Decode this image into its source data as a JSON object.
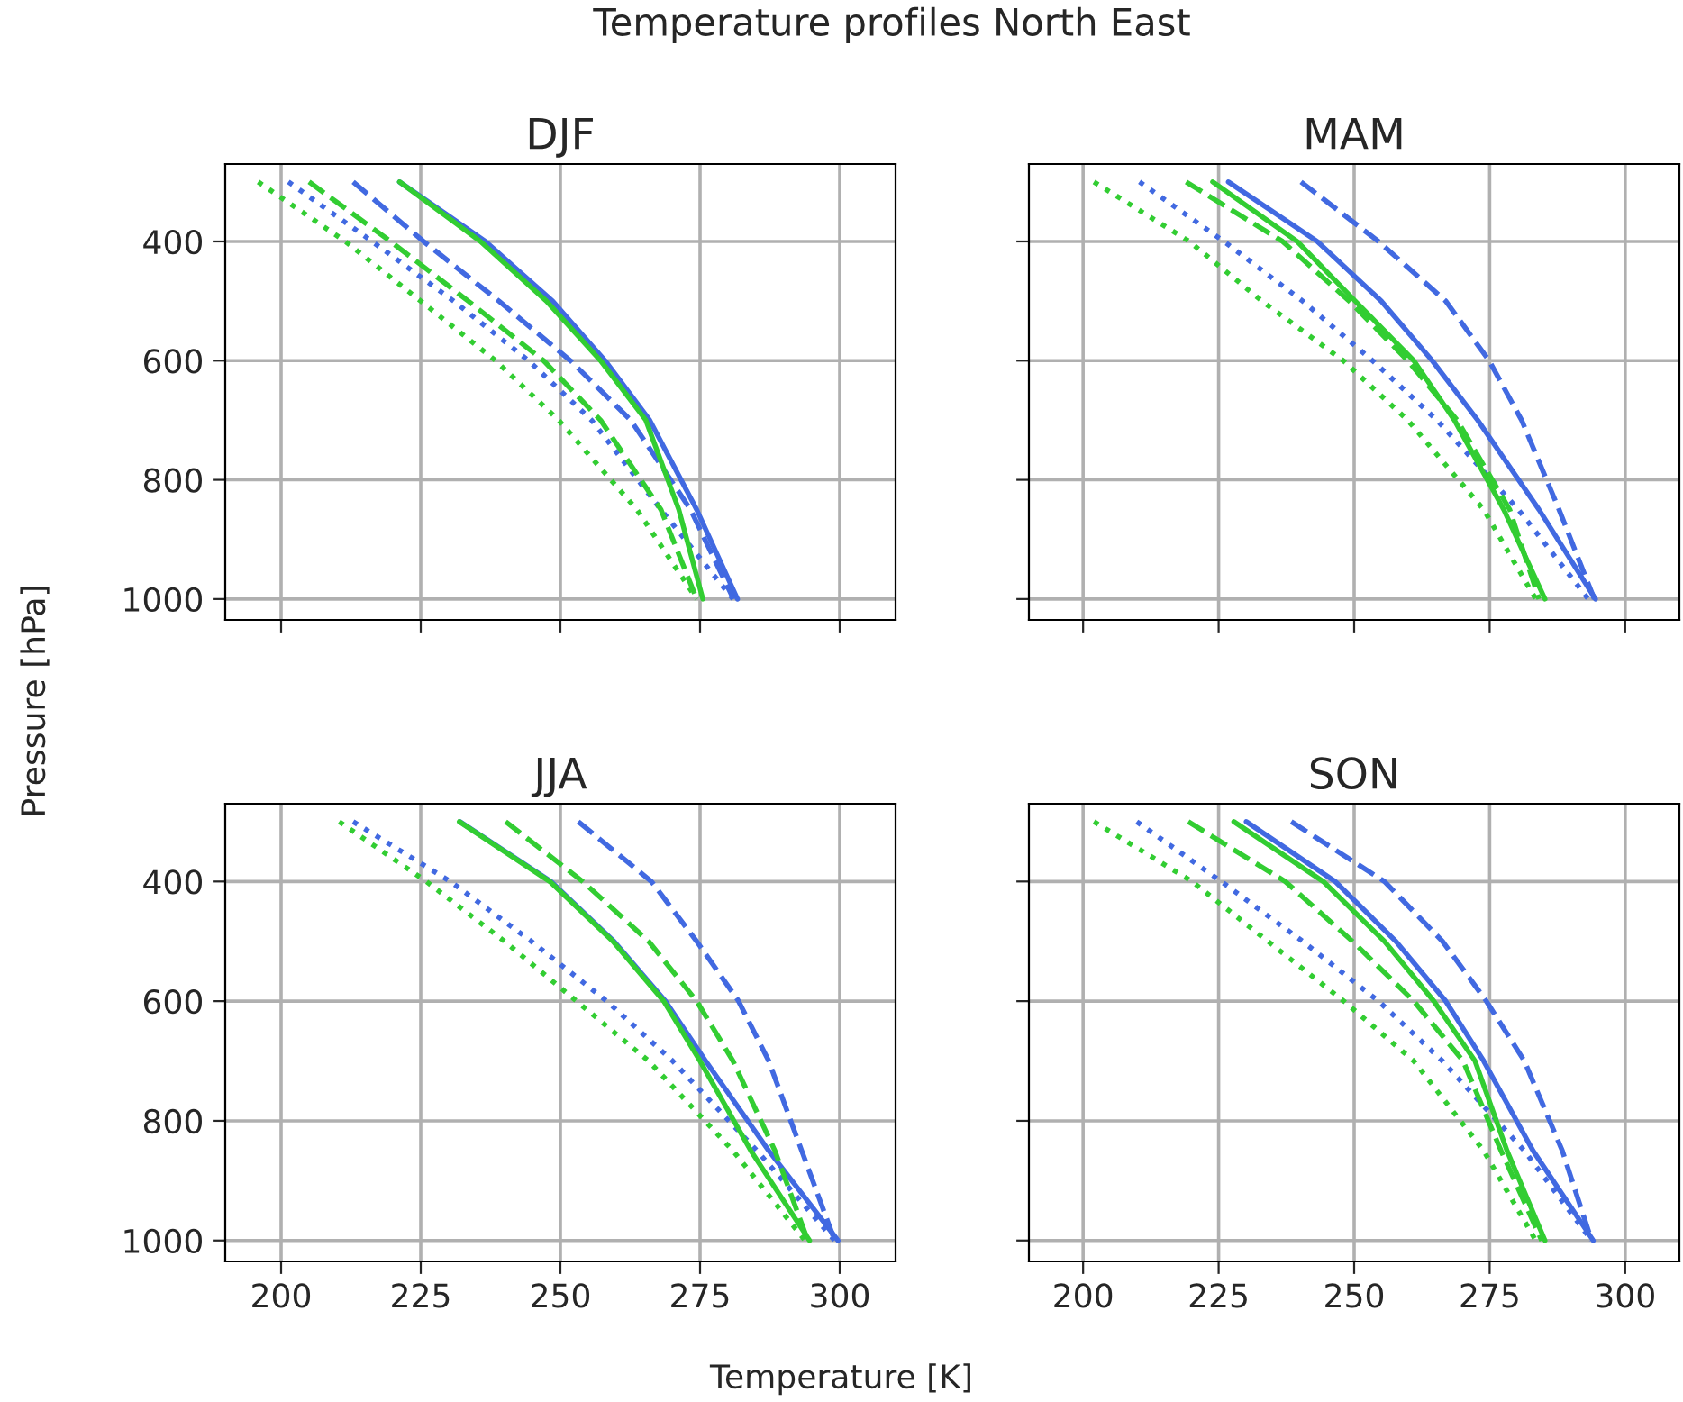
{
  "chart_data": [
    {
      "type": "line",
      "title": "DJF",
      "annotations": [
        "Temperature profiles North East"
      ],
      "ylabel": "Pressure [hPa]",
      "xlim": [
        190,
        310
      ],
      "xticks": [
        200,
        225,
        250,
        275,
        300
      ],
      "ylim": [
        1035,
        270
      ],
      "yticks": [
        400,
        600,
        800,
        1000
      ],
      "grid": true,
      "tick_labels": "y",
      "series": [
        {
          "color": "#4169e1",
          "line_style": "solid",
          "x": [
            221.2,
            236.6,
            248.6,
            258,
            266,
            274.4,
            281.7
          ],
          "values": [
            300,
            400,
            500,
            600,
            700,
            850,
            1000
          ]
        },
        {
          "color": "#4169e1",
          "line_style": "dashed",
          "x": [
            212.9,
            225.5,
            239,
            251.8,
            262.6,
            273.3,
            281
          ],
          "values": [
            300,
            400,
            500,
            600,
            700,
            850,
            1000
          ]
        },
        {
          "color": "#4169e1",
          "line_style": "dotted",
          "x": [
            201.3,
            216.3,
            230.9,
            244.3,
            255.6,
            268,
            280.9
          ],
          "values": [
            300,
            400,
            500,
            600,
            700,
            850,
            1000
          ]
        },
        {
          "color": "#32cd32",
          "line_style": "solid",
          "x": [
            221.2,
            235.7,
            247.5,
            257.2,
            265.3,
            271.2,
            275.5
          ],
          "values": [
            300,
            400,
            500,
            600,
            700,
            850,
            1000
          ]
        },
        {
          "color": "#32cd32",
          "line_style": "dashed",
          "x": [
            205,
            219.6,
            233.5,
            247,
            257.2,
            268,
            274.4
          ],
          "values": [
            300,
            400,
            500,
            600,
            700,
            850,
            1000
          ]
        },
        {
          "color": "#32cd32",
          "line_style": "dotted",
          "x": [
            195.9,
            211.5,
            225,
            238.4,
            249.7,
            263.7,
            274.4
          ],
          "values": [
            300,
            400,
            500,
            600,
            700,
            850,
            1000
          ]
        }
      ]
    },
    {
      "type": "line",
      "title": "MAM",
      "xlim": [
        190,
        310
      ],
      "xticks": [
        200,
        225,
        250,
        275,
        300
      ],
      "ylim": [
        1035,
        270
      ],
      "yticks": [
        400,
        600,
        800,
        1000
      ],
      "grid": true,
      "tick_labels": false,
      "series": [
        {
          "color": "#4169e1",
          "line_style": "solid",
          "x": [
            226.8,
            243.2,
            255,
            264.4,
            272.8,
            284.1,
            294.5
          ],
          "values": [
            300,
            400,
            500,
            600,
            700,
            850,
            1000
          ]
        },
        {
          "color": "#4169e1",
          "line_style": "dashed",
          "x": [
            240.2,
            254.5,
            266.9,
            274.9,
            280.9,
            287.8,
            294.3
          ],
          "values": [
            300,
            400,
            500,
            600,
            700,
            850,
            1000
          ]
        },
        {
          "color": "#4169e1",
          "line_style": "dotted",
          "x": [
            210.4,
            226,
            240.5,
            253.4,
            265.3,
            280.3,
            293.2
          ],
          "values": [
            300,
            400,
            500,
            600,
            700,
            850,
            1000
          ]
        },
        {
          "color": "#32cd32",
          "line_style": "solid",
          "x": [
            223.9,
            239.5,
            250.2,
            261,
            268.5,
            277.6,
            285.2
          ],
          "values": [
            300,
            400,
            500,
            600,
            700,
            850,
            1000
          ]
        },
        {
          "color": "#32cd32",
          "line_style": "dashed",
          "x": [
            219,
            236.8,
            249.1,
            259.9,
            269,
            278.7,
            284.1
          ],
          "values": [
            300,
            400,
            500,
            600,
            700,
            850,
            1000
          ]
        },
        {
          "color": "#32cd32",
          "line_style": "dotted",
          "x": [
            202,
            219.6,
            233,
            248,
            259.9,
            273.9,
            283.5
          ],
          "values": [
            300,
            400,
            500,
            600,
            700,
            850,
            1000
          ]
        }
      ]
    },
    {
      "type": "line",
      "title": "JJA",
      "xlabel": "Temperature [K]",
      "xlim": [
        190,
        310
      ],
      "xticks": [
        200,
        225,
        250,
        275,
        300
      ],
      "ylim": [
        1035,
        270
      ],
      "yticks": [
        400,
        600,
        800,
        1000
      ],
      "grid": true,
      "series": [
        {
          "color": "#4169e1",
          "line_style": "solid",
          "x": [
            232,
            248.3,
            259.6,
            268.8,
            276,
            287.3,
            299.7
          ],
          "values": [
            300,
            400,
            500,
            600,
            700,
            850,
            1000
          ]
        },
        {
          "color": "#4169e1",
          "line_style": "dashed",
          "x": [
            253.2,
            266.3,
            274.4,
            281.9,
            287.3,
            293.2,
            299.1
          ],
          "values": [
            300,
            400,
            500,
            600,
            700,
            850,
            1000
          ]
        },
        {
          "color": "#4169e1",
          "line_style": "dotted",
          "x": [
            212.9,
            230.3,
            244.8,
            258.3,
            270.1,
            285.2,
            299.1
          ],
          "values": [
            300,
            400,
            500,
            600,
            700,
            850,
            1000
          ]
        },
        {
          "color": "#32cd32",
          "line_style": "solid",
          "x": [
            231.9,
            248.1,
            259.4,
            268.5,
            275,
            284.1,
            294.6
          ],
          "values": [
            300,
            400,
            500,
            600,
            700,
            850,
            1000
          ]
        },
        {
          "color": "#32cd32",
          "line_style": "dashed",
          "x": [
            240.2,
            254,
            265.8,
            274.4,
            280.9,
            288.4,
            294.3
          ],
          "values": [
            300,
            400,
            500,
            600,
            700,
            850,
            1000
          ]
        },
        {
          "color": "#32cd32",
          "line_style": "dotted",
          "x": [
            210.4,
            226,
            240,
            252.9,
            265.8,
            280.9,
            293.8
          ],
          "values": [
            300,
            400,
            500,
            600,
            700,
            850,
            1000
          ]
        }
      ]
    },
    {
      "type": "line",
      "title": "SON",
      "xlim": [
        190,
        310
      ],
      "xticks": [
        200,
        225,
        250,
        275,
        300
      ],
      "ylim": [
        1035,
        270
      ],
      "yticks": [
        400,
        600,
        800,
        1000
      ],
      "grid": true,
      "tick_labels": "x",
      "series": [
        {
          "color": "#4169e1",
          "line_style": "solid",
          "x": [
            230.1,
            246.5,
            257.7,
            266.9,
            273.9,
            283,
            294.1
          ],
          "values": [
            300,
            400,
            500,
            600,
            700,
            850,
            1000
          ]
        },
        {
          "color": "#4169e1",
          "line_style": "dashed",
          "x": [
            238.4,
            255.6,
            266.3,
            274.4,
            281.4,
            288.4,
            293.8
          ],
          "values": [
            300,
            400,
            500,
            600,
            700,
            850,
            1000
          ]
        },
        {
          "color": "#4169e1",
          "line_style": "dotted",
          "x": [
            209.9,
            225.5,
            240.5,
            254.5,
            266.3,
            281.4,
            293.8
          ],
          "values": [
            300,
            400,
            500,
            600,
            700,
            850,
            1000
          ]
        },
        {
          "color": "#32cd32",
          "line_style": "solid",
          "x": [
            227.8,
            244.3,
            255.6,
            264.7,
            272.3,
            278.2,
            285.2
          ],
          "values": [
            300,
            400,
            500,
            600,
            700,
            850,
            1000
          ]
        },
        {
          "color": "#32cd32",
          "line_style": "dashed",
          "x": [
            219.4,
            237.3,
            249.7,
            261,
            270.1,
            277.1,
            284.6
          ],
          "values": [
            300,
            400,
            500,
            600,
            700,
            850,
            1000
          ]
        },
        {
          "color": "#32cd32",
          "line_style": "dotted",
          "x": [
            202,
            220.1,
            234.1,
            248.1,
            261,
            273.9,
            283.5
          ],
          "values": [
            300,
            400,
            500,
            600,
            700,
            850,
            1000
          ]
        }
      ]
    }
  ]
}
